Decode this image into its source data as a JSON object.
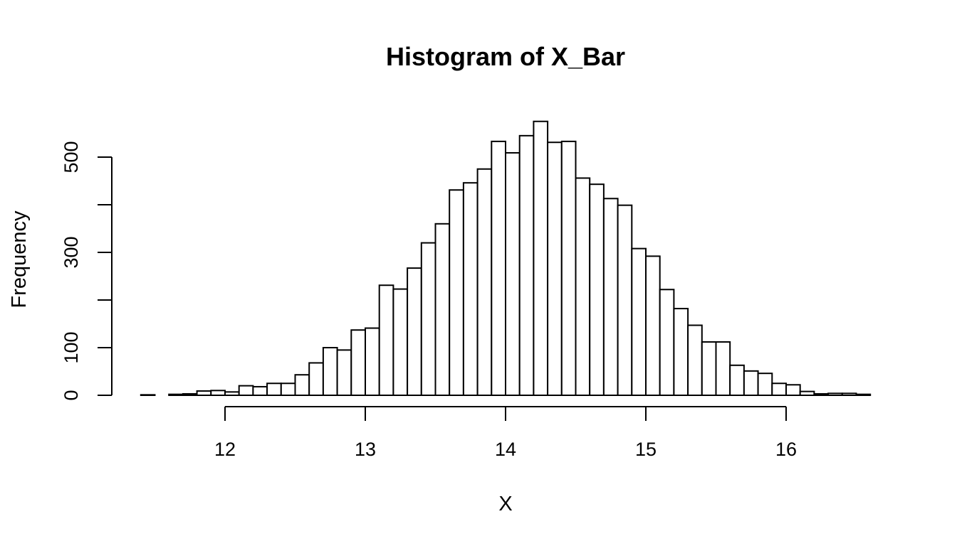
{
  "chart_data": {
    "type": "bar",
    "title": "Histogram of X_Bar",
    "xlabel": "X",
    "ylabel": "Frequency",
    "bin_width": 0.1,
    "bin_start": 11.4,
    "x_ticks": [
      12,
      13,
      14,
      15,
      16
    ],
    "y_ticks": [
      0,
      100,
      200,
      300,
      400,
      500
    ],
    "y_tick_labels": [
      "0",
      "100",
      "",
      "300",
      "",
      "500"
    ],
    "xlim": [
      11.4,
      16.6
    ],
    "ylim": [
      0,
      580
    ],
    "values": [
      1,
      0,
      2,
      3,
      9,
      10,
      7,
      20,
      18,
      25,
      25,
      43,
      68,
      100,
      95,
      137,
      141,
      231,
      223,
      267,
      320,
      360,
      431,
      446,
      475,
      533,
      509,
      545,
      575,
      531,
      533,
      456,
      443,
      413,
      399,
      308,
      292,
      222,
      182,
      147,
      112,
      112,
      63,
      51,
      46,
      25,
      22,
      8,
      3,
      4,
      4,
      2
    ]
  }
}
